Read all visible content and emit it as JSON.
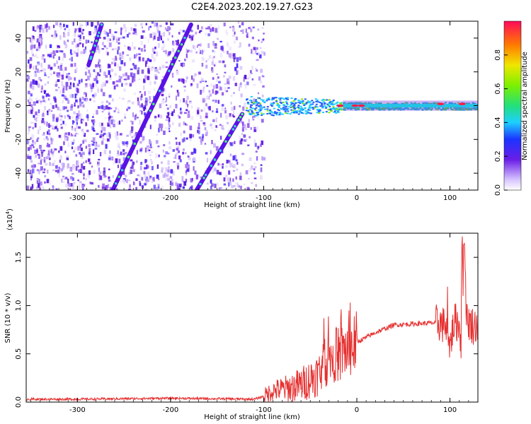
{
  "figure_title": "C2E4.2023.202.19.27.G23",
  "colors": {
    "snr_line": "#e53030",
    "track": "#5a12e6",
    "bright": "#3ad2d2"
  },
  "chart_data": [
    {
      "type": "heatmap",
      "title": "",
      "xlabel": "Height of straight line (km)",
      "ylabel": "Frequency (Hz)",
      "xlim": [
        -355,
        130
      ],
      "ylim": [
        -50,
        50
      ],
      "x_ticks": [
        -300,
        -200,
        -100,
        0,
        100
      ],
      "y_ticks": [
        -40,
        -20,
        0,
        20,
        40
      ],
      "colorbar": {
        "label": "Normalized spectral amplitude",
        "range": [
          0.0,
          1.0
        ],
        "ticks": [
          "0.0",
          "0.2",
          "0.4",
          "0.6",
          "0.8"
        ],
        "colormap": "rainbow (white → violet → blue → cyan → green → yellow → red)"
      },
      "features": [
        {
          "name": "noise region",
          "x_range": [
            -355,
            -100
          ],
          "freq_range": [
            -50,
            50
          ]
        },
        {
          "name": "main echo band",
          "x_range": [
            -120,
            130
          ],
          "freq_center": 0
        },
        {
          "name": "diagonal trace 1",
          "x_from": -288,
          "x_to": -274,
          "freq_from": 24,
          "freq_to": 48
        },
        {
          "name": "diagonal trace 2",
          "x_from": -262,
          "x_to": -178,
          "freq_from": -50,
          "freq_to": 48
        },
        {
          "name": "diagonal trace 3",
          "x_from": -172,
          "x_to": -123,
          "freq_from": -50,
          "freq_to": -5
        }
      ]
    },
    {
      "type": "line",
      "title": "",
      "xlabel": "Height of straight line (km)",
      "ylabel": "SNR (10 * v/v)",
      "y_multiplier": "(x10",
      "y_multiplier_exp": "4",
      "y_multiplier_close": ")",
      "xlim": [
        -355,
        130
      ],
      "ylim": [
        0,
        1.75
      ],
      "x_ticks": [
        -300,
        -200,
        -100,
        0,
        100
      ],
      "y_ticks": [
        0.0,
        0.5,
        1.0,
        1.5
      ],
      "y_tick_labels": [
        "0.0",
        "0.5",
        "1.0",
        "1.5"
      ],
      "series": [
        {
          "x": [
            -355,
            -300,
            -200,
            -110,
            -100,
            -90,
            -75,
            -60,
            -40,
            -30,
            -20,
            -10,
            0,
            20,
            40,
            60,
            80,
            90,
            95,
            100,
            105,
            110,
            113,
            115,
            118,
            125,
            130
          ],
          "y": [
            0.03,
            0.03,
            0.04,
            0.03,
            0.06,
            0.12,
            0.14,
            0.18,
            0.3,
            0.45,
            0.5,
            0.55,
            0.62,
            0.72,
            0.8,
            0.81,
            0.82,
            0.82,
            0.78,
            0.6,
            0.84,
            0.8,
            0.5,
            1.75,
            0.85,
            0.79,
            0.8
          ]
        }
      ]
    }
  ]
}
